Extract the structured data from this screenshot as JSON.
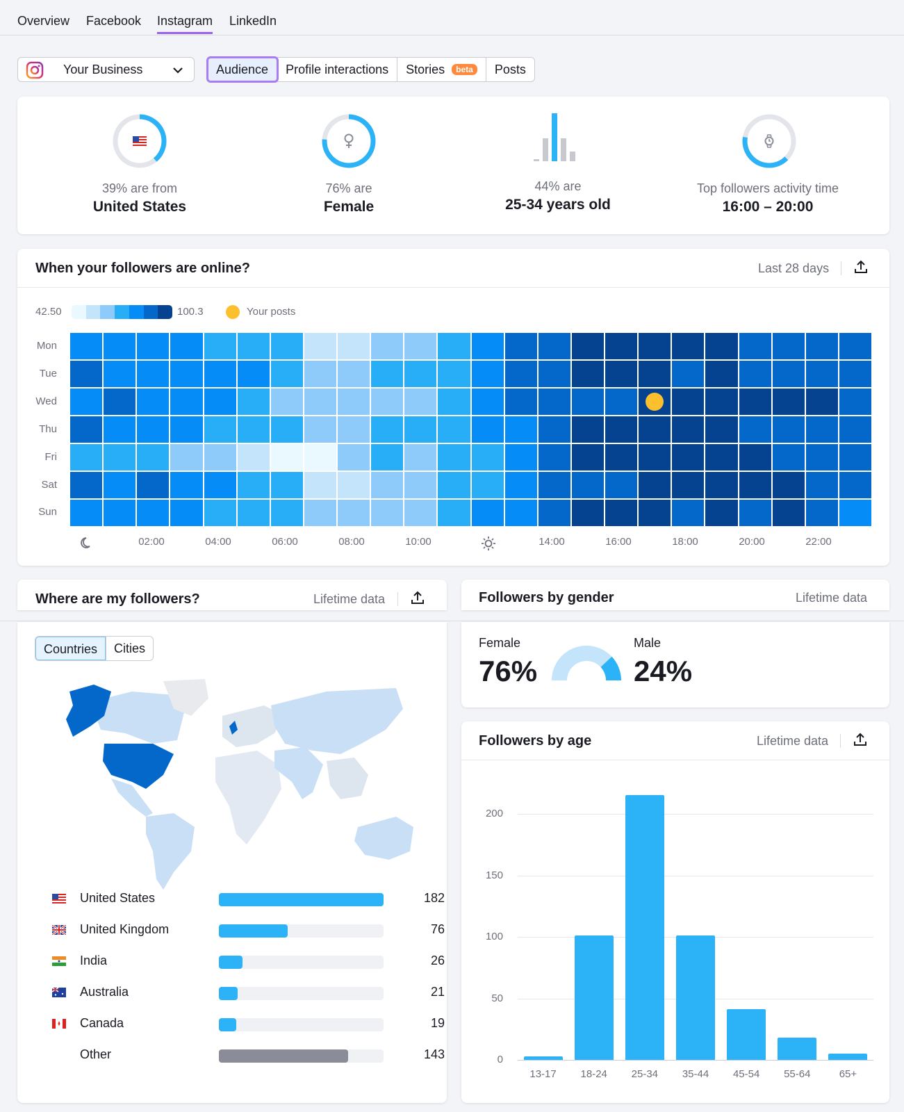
{
  "nav": {
    "tabs": [
      "Overview",
      "Facebook",
      "Instagram",
      "LinkedIn"
    ],
    "active": "Instagram"
  },
  "business_select": {
    "label": "Your Business"
  },
  "subtabs": {
    "audience": "Audience",
    "profile": "Profile interactions",
    "stories": "Stories",
    "beta": "beta",
    "posts": "Posts"
  },
  "summary": [
    {
      "label": "39% are from",
      "value": "United States"
    },
    {
      "label": "76% are",
      "value": "Female"
    },
    {
      "label": "44% are",
      "value": "25-34 years old"
    },
    {
      "label": "Top followers activity time",
      "value": "16:00 – 20:00"
    }
  ],
  "summary_progress": {
    "country": 0.39,
    "female": 0.76,
    "activity": 0.4
  },
  "online": {
    "title": "When your followers are online?",
    "range": "Last 28 days",
    "legend_min": "42.50",
    "legend_max": "100.3",
    "your_posts": "Your posts",
    "days": [
      "Mon",
      "Tue",
      "Wed",
      "Thu",
      "Fri",
      "Sat",
      "Sun"
    ],
    "times": [
      "02:00",
      "04:00",
      "06:00",
      "08:00",
      "10:00",
      "14:00",
      "16:00",
      "18:00",
      "20:00",
      "22:00"
    ],
    "post_marker": {
      "day": "Wed",
      "hour": 17
    },
    "intensity": [
      [
        4,
        4,
        4,
        4,
        3,
        3,
        3,
        1,
        1,
        2,
        2,
        3,
        4,
        5,
        5,
        6,
        6,
        6,
        6,
        6,
        5,
        5,
        5,
        5
      ],
      [
        5,
        4,
        4,
        4,
        4,
        4,
        3,
        2,
        2,
        3,
        3,
        3,
        4,
        5,
        5,
        6,
        6,
        6,
        5,
        6,
        5,
        5,
        5,
        5
      ],
      [
        4,
        5,
        4,
        4,
        4,
        3,
        2,
        2,
        2,
        2,
        2,
        3,
        4,
        5,
        5,
        5,
        5,
        6,
        6,
        6,
        6,
        6,
        6,
        5
      ],
      [
        5,
        4,
        4,
        4,
        3,
        3,
        3,
        2,
        2,
        3,
        3,
        3,
        4,
        4,
        5,
        6,
        6,
        6,
        6,
        6,
        5,
        5,
        5,
        5
      ],
      [
        3,
        3,
        3,
        2,
        2,
        1,
        0,
        0,
        2,
        3,
        2,
        3,
        3,
        4,
        5,
        6,
        6,
        6,
        6,
        6,
        6,
        5,
        5,
        5
      ],
      [
        5,
        4,
        5,
        4,
        4,
        3,
        3,
        1,
        1,
        2,
        2,
        3,
        3,
        4,
        5,
        5,
        5,
        6,
        6,
        6,
        6,
        6,
        5,
        5
      ],
      [
        4,
        4,
        4,
        4,
        3,
        3,
        3,
        2,
        2,
        2,
        2,
        3,
        4,
        4,
        5,
        6,
        6,
        6,
        5,
        6,
        5,
        6,
        5,
        4
      ]
    ]
  },
  "where": {
    "title": "Where are my followers?",
    "range": "Lifetime data",
    "toggle": [
      "Countries",
      "Cities"
    ],
    "countries": [
      {
        "name": "United States",
        "value": 182,
        "flag": "us"
      },
      {
        "name": "United Kingdom",
        "value": 76,
        "flag": "uk"
      },
      {
        "name": "India",
        "value": 26,
        "flag": "in"
      },
      {
        "name": "Australia",
        "value": 21,
        "flag": "au"
      },
      {
        "name": "Canada",
        "value": 19,
        "flag": "ca"
      },
      {
        "name": "Other",
        "value": 143,
        "flag": ""
      }
    ]
  },
  "gender": {
    "title": "Followers by gender",
    "range": "Lifetime data",
    "female_label": "Female",
    "female_value": "76%",
    "male_label": "Male",
    "male_value": "24%"
  },
  "age": {
    "title": "Followers by age",
    "range": "Lifetime data"
  },
  "colors": {
    "accent": "#2cb2f6",
    "active_tab": "#9a5ff0",
    "post_marker": "#fcc02f",
    "other_bar": "#8a8d97",
    "heat_scale": [
      "#eaf8ff",
      "#c3e4fb",
      "#8ecbfa",
      "#28aef6",
      "#058cf6",
      "#0468cb",
      "#05428f"
    ]
  },
  "chart_data": {
    "type": "bar",
    "title": "Followers by age",
    "categories": [
      "13-17",
      "18-24",
      "25-34",
      "35-44",
      "45-54",
      "55-64",
      "65+"
    ],
    "values": [
      3,
      101,
      215,
      101,
      41,
      18,
      5
    ],
    "ylim": [
      0,
      200
    ],
    "yticks": [
      0,
      50,
      100,
      150,
      200
    ],
    "grid": true
  }
}
